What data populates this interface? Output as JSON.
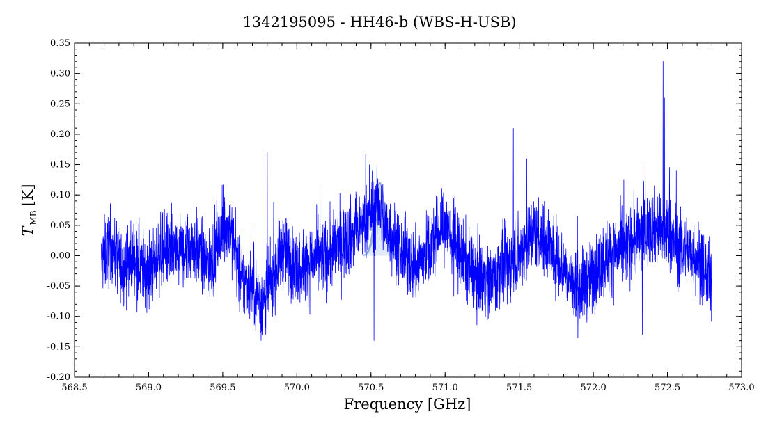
{
  "chart_data": {
    "type": "line",
    "title": "1342195095 - HH46-b (WBS-H-USB)",
    "xlabel": "Frequency [GHz]",
    "ylabel_main": "T",
    "ylabel_sub": "MB",
    "ylabel_unit": "[K]",
    "xlim": [
      568.5,
      573.0
    ],
    "ylim": [
      -0.2,
      0.35
    ],
    "xticks": [
      "568.5",
      "569.0",
      "569.5",
      "570.0",
      "570.5",
      "571.0",
      "571.5",
      "572.0",
      "572.5",
      "573.0"
    ],
    "yticks": [
      "0.35",
      "0.30",
      "0.25",
      "0.20",
      "0.15",
      "0.10",
      "0.05",
      "0.00",
      "-0.05",
      "-0.10",
      "-0.15",
      "-0.20"
    ],
    "grid": false,
    "colors": {
      "spectrum": "#0000ff",
      "model_fill": "#bcd0ec",
      "model_edge": "#8fa8d4",
      "axes": "#000000"
    },
    "series": [
      {
        "x": [
          568.68,
          568.75,
          568.82,
          568.9,
          569.0,
          569.1,
          569.2,
          569.3,
          569.4,
          569.5,
          569.55,
          569.62,
          569.7,
          569.76,
          569.8,
          569.85,
          569.9,
          570.0,
          570.1,
          570.2,
          570.3,
          570.4,
          570.45,
          570.5,
          570.55,
          570.6,
          570.7,
          570.8,
          570.9,
          571.0,
          571.1,
          571.2,
          571.3,
          571.4,
          571.5,
          571.6,
          571.7,
          571.8,
          571.85,
          571.9,
          572.0,
          572.1,
          572.2,
          572.3,
          572.4,
          572.47,
          572.5,
          572.55,
          572.6,
          572.7,
          572.8
        ],
        "y": [
          -0.01,
          0.02,
          -0.02,
          0.0,
          -0.03,
          0.01,
          0.0,
          0.02,
          -0.02,
          0.04,
          0.05,
          -0.04,
          -0.05,
          -0.08,
          -0.06,
          -0.03,
          0.01,
          -0.02,
          -0.01,
          0.0,
          0.02,
          0.04,
          0.05,
          0.07,
          0.08,
          0.05,
          0.01,
          -0.02,
          0.02,
          0.05,
          0.0,
          -0.03,
          -0.04,
          -0.02,
          0.0,
          0.04,
          0.02,
          -0.02,
          -0.04,
          -0.06,
          -0.03,
          0.0,
          0.01,
          0.03,
          0.05,
          0.03,
          0.04,
          0.02,
          0.01,
          0.0,
          -0.05
        ],
        "spike_range": [
          -0.14,
          0.32
        ]
      }
    ],
    "model_line": {
      "center": 570.56,
      "peak": 0.12,
      "width": 0.08,
      "band": 0.05
    }
  }
}
